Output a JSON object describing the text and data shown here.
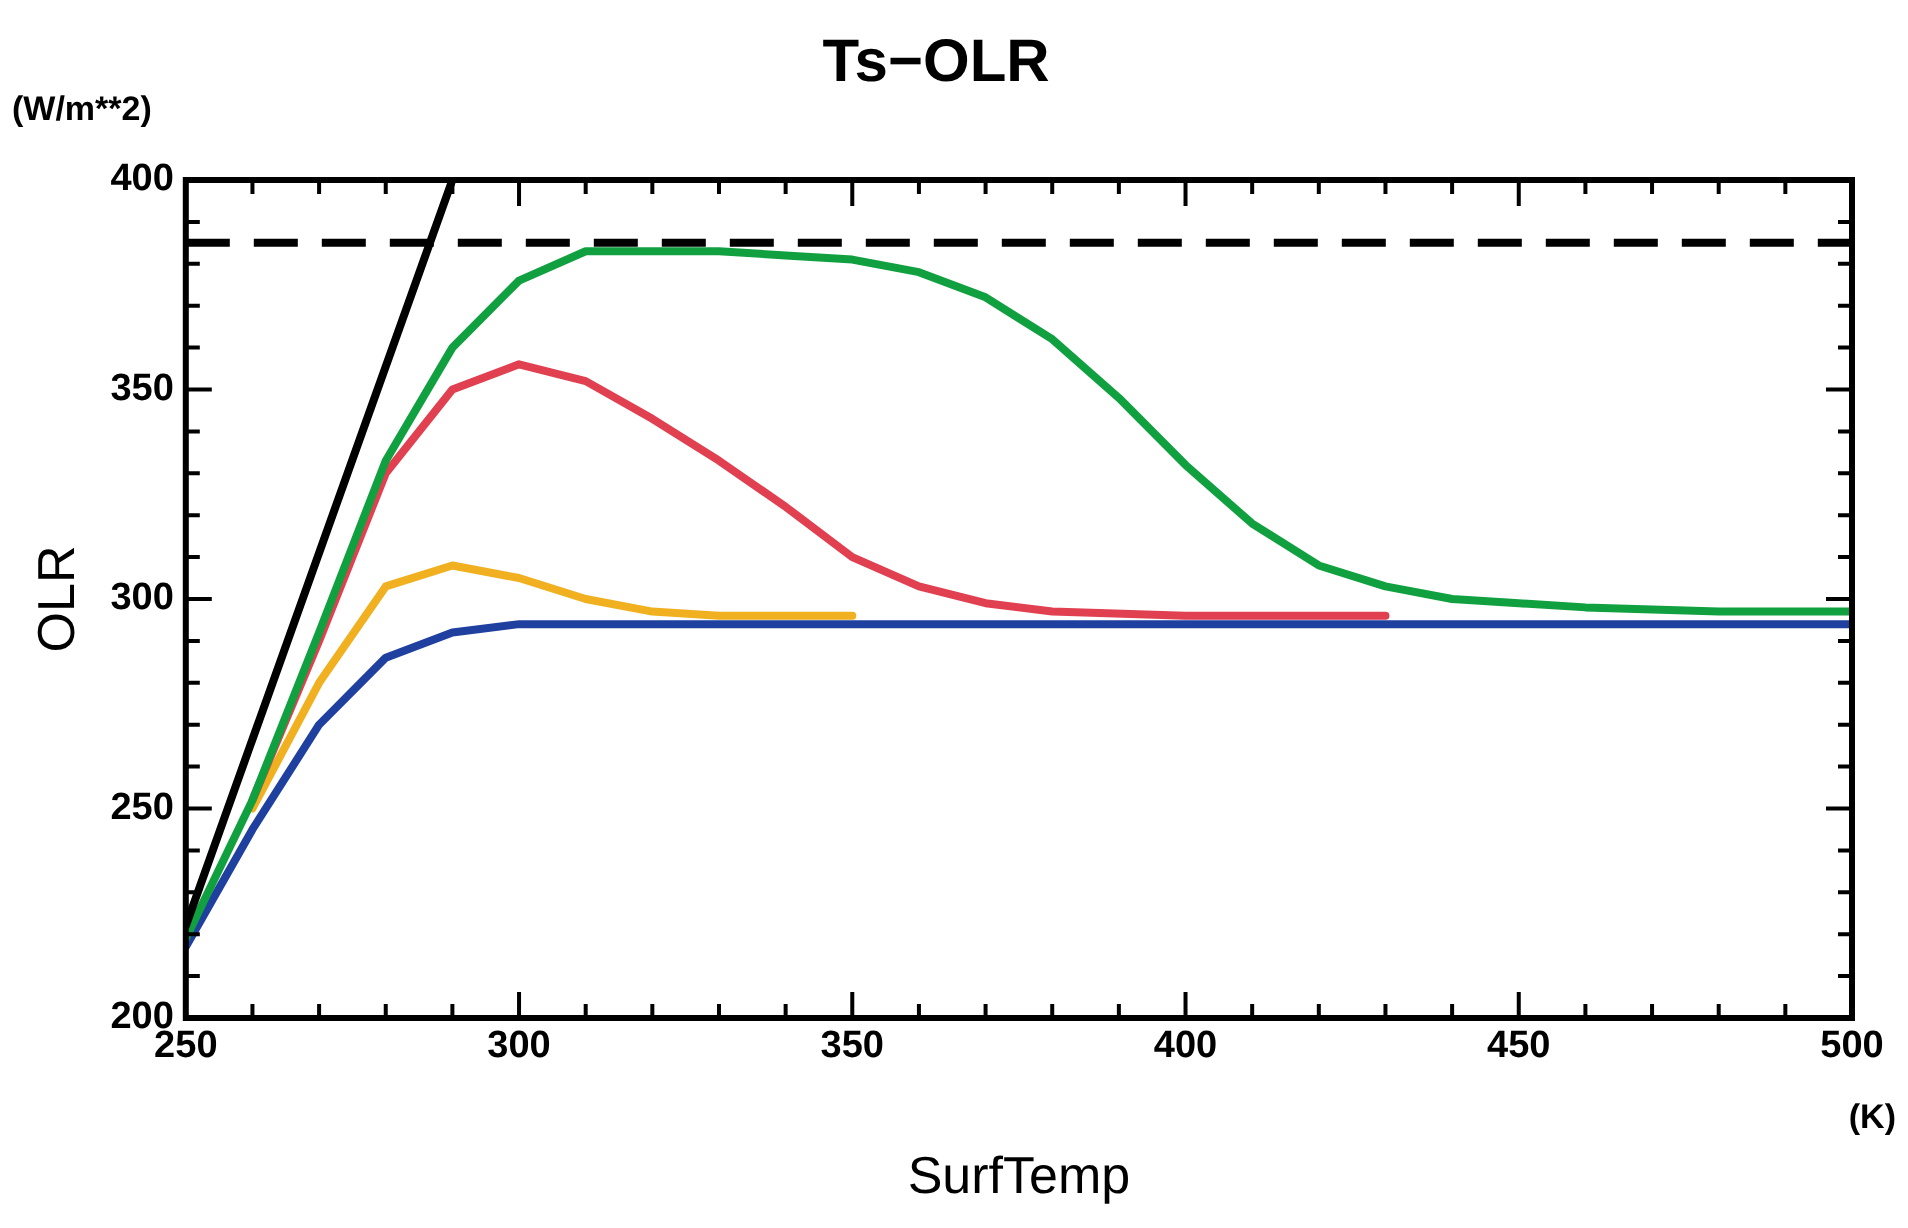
{
  "chart_data": {
    "type": "line",
    "title": "Ts−OLR",
    "xlabel": "SurfTemp",
    "ylabel": "OLR",
    "annotations": [
      "(W/m**2)",
      "(K)"
    ],
    "xlim": [
      250,
      500
    ],
    "ylim": [
      200,
      400
    ],
    "xticks": [
      250,
      {
        "value": 260,
        "label": null
      },
      {
        "value": 270,
        "label": null
      },
      {
        "value": 280,
        "label": null
      },
      {
        "value": 290,
        "label": null
      },
      300,
      {
        "value": 310,
        "label": null
      },
      {
        "value": 320,
        "label": null
      },
      {
        "value": 330,
        "label": null
      },
      {
        "value": 340,
        "label": null
      },
      350,
      {
        "value": 360,
        "label": null
      },
      {
        "value": 370,
        "label": null
      },
      {
        "value": 380,
        "label": null
      },
      {
        "value": 390,
        "label": null
      },
      400,
      {
        "value": 410,
        "label": null
      },
      {
        "value": 420,
        "label": null
      },
      {
        "value": 430,
        "label": null
      },
      {
        "value": 440,
        "label": null
      },
      450,
      {
        "value": 460,
        "label": null
      },
      {
        "value": 470,
        "label": null
      },
      {
        "value": 480,
        "label": null
      },
      {
        "value": 490,
        "label": null
      },
      500
    ],
    "yticks": [
      200,
      {
        "value": 210,
        "label": null
      },
      {
        "value": 220,
        "label": null
      },
      {
        "value": 230,
        "label": null
      },
      {
        "value": 240,
        "label": null
      },
      250,
      {
        "value": 260,
        "label": null
      },
      {
        "value": 270,
        "label": null
      },
      {
        "value": 280,
        "label": null
      },
      {
        "value": 290,
        "label": null
      },
      300,
      {
        "value": 310,
        "label": null
      },
      {
        "value": 320,
        "label": null
      },
      {
        "value": 330,
        "label": null
      },
      {
        "value": 340,
        "label": null
      },
      350,
      {
        "value": 360,
        "label": null
      },
      {
        "value": 370,
        "label": null
      },
      {
        "value": 380,
        "label": null
      },
      {
        "value": 390,
        "label": null
      },
      400
    ],
    "grid": false,
    "legend": false,
    "marker": "none",
    "line_style": "solid",
    "ref_lines": [
      {
        "axis": "y",
        "value": 385,
        "color": "#000000",
        "line_style": "dashed"
      }
    ],
    "series": [
      {
        "color": "#000000",
        "x": [
          250,
          290
        ],
        "values": [
          222,
          400
        ]
      },
      {
        "color": "#10a040",
        "x": [
          250,
          260,
          270,
          280,
          290,
          300,
          310,
          320,
          330,
          340,
          350,
          360,
          370,
          380,
          390,
          400,
          410,
          420,
          430,
          440,
          450,
          460,
          480,
          500
        ],
        "values": [
          219,
          252,
          292,
          333,
          360,
          376,
          383,
          383,
          383,
          382,
          381,
          378,
          372,
          362,
          348,
          332,
          318,
          308,
          303,
          300,
          299,
          298,
          297,
          297
        ]
      },
      {
        "color": "#e04050",
        "x": [
          260,
          270,
          280,
          290,
          300,
          310,
          320,
          330,
          340,
          350,
          360,
          370,
          380,
          400,
          430
        ],
        "values": [
          252,
          290,
          330,
          350,
          356,
          352,
          343,
          333,
          322,
          310,
          303,
          299,
          297,
          296,
          296
        ]
      },
      {
        "color": "#f0b020",
        "x": [
          260,
          270,
          280,
          290,
          300,
          310,
          320,
          330,
          350
        ],
        "values": [
          250,
          280,
          303,
          308,
          305,
          300,
          297,
          296,
          296
        ]
      },
      {
        "color": "#2040a0",
        "x": [
          250,
          260,
          270,
          280,
          290,
          300,
          320,
          350,
          400,
          450,
          500
        ],
        "values": [
          217,
          245,
          270,
          286,
          292,
          294,
          294,
          294,
          294,
          294,
          294
        ]
      }
    ]
  }
}
